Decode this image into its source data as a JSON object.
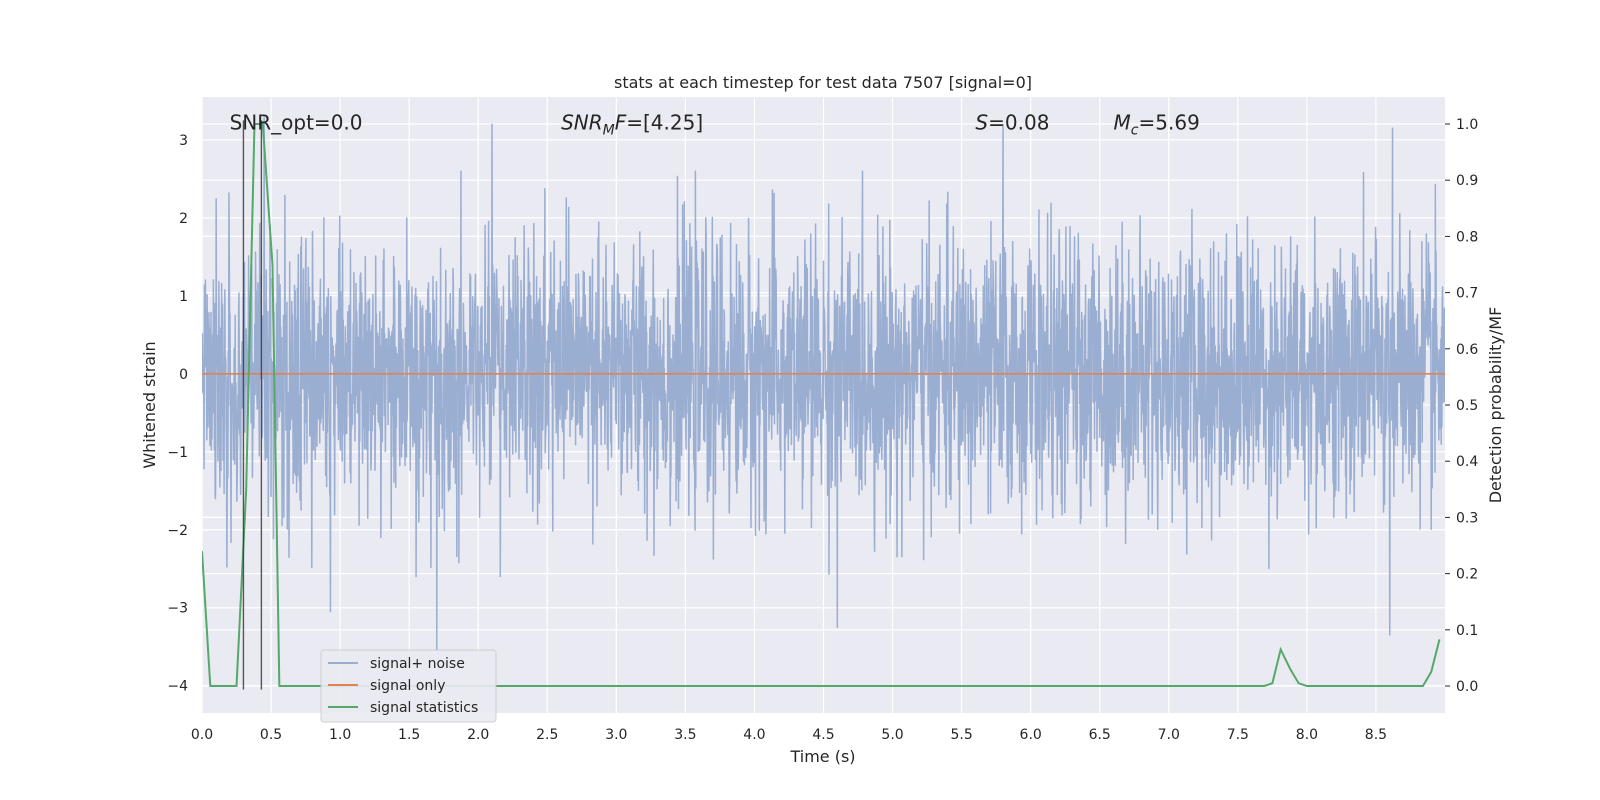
{
  "chart_data": {
    "type": "line",
    "title": "stats at each timestep for test data 7507 [signal=0]",
    "xlabel": "Time (s)",
    "ylabel": "Whitened strain",
    "y2label": "Detection probability/MF",
    "xlim": [
      0.0,
      9.0
    ],
    "ylim": [
      -4.35,
      3.55
    ],
    "y2lim": [
      -0.048,
      1.048
    ],
    "x_ticks": [
      0.0,
      0.5,
      1.0,
      1.5,
      2.0,
      2.5,
      3.0,
      3.5,
      4.0,
      4.5,
      5.0,
      5.5,
      6.0,
      6.5,
      7.0,
      7.5,
      8.0,
      8.5
    ],
    "x_tick_labels": [
      "0.0",
      "0.5",
      "1.0",
      "1.5",
      "2.0",
      "2.5",
      "3.0",
      "3.5",
      "4.0",
      "4.5",
      "5.0",
      "5.5",
      "6.0",
      "6.5",
      "7.0",
      "7.5",
      "8.0",
      "8.5"
    ],
    "y_ticks": [
      -4,
      -3,
      -2,
      -1,
      0,
      1,
      2,
      3
    ],
    "y_tick_labels": [
      "−4",
      "−3",
      "−2",
      "−1",
      "0",
      "1",
      "2",
      "3"
    ],
    "y2_ticks": [
      0.0,
      0.1,
      0.2,
      0.3,
      0.4,
      0.5,
      0.6,
      0.7,
      0.8,
      0.9,
      1.0
    ],
    "y2_tick_labels": [
      "0.0",
      "0.1",
      "0.2",
      "0.3",
      "0.4",
      "0.5",
      "0.6",
      "0.7",
      "0.8",
      "0.9",
      "1.0"
    ],
    "grid": true,
    "annotations": [
      {
        "text": "SNR_opt=0.0",
        "x": 0.2
      },
      {
        "text": "SNR_MF=[4.25]",
        "x": 2.6
      },
      {
        "text": "S=0.08",
        "x": 5.6
      },
      {
        "text": "M_c=5.69",
        "x": 6.6
      }
    ],
    "annotation_y": 3.22,
    "vlines": [
      0.3,
      0.43
    ],
    "vline_range": [
      -4.05,
      3.25
    ],
    "series": [
      {
        "name": "signal+ noise",
        "color": "#9aaed2",
        "kind": "noise",
        "std": 0.85,
        "duration": 9.0,
        "samples": 3600,
        "spikes": [
          {
            "x": 1.7,
            "y": -3.55
          },
          {
            "x": 2.1,
            "y": 3.2
          },
          {
            "x": 4.6,
            "y": -3.25
          },
          {
            "x": 8.6,
            "y": -3.35
          },
          {
            "x": 8.62,
            "y": 3.15
          },
          {
            "x": 5.8,
            "y": 3.2
          },
          {
            "x": 0.45,
            "y": 3.3
          },
          {
            "x": 0.93,
            "y": -3.05
          }
        ]
      },
      {
        "name": "signal only",
        "color": "#dd8452",
        "kind": "line",
        "x": [
          0.0,
          9.0
        ],
        "y": [
          0.0,
          0.0
        ]
      },
      {
        "name": "signal statistics",
        "color": "#55a868",
        "kind": "line",
        "axis": "right",
        "x": [
          0.0,
          0.06,
          0.12,
          0.25,
          0.32,
          0.38,
          0.44,
          0.51,
          0.56,
          0.62,
          1.0,
          2.0,
          3.0,
          4.0,
          5.0,
          6.0,
          7.0,
          7.6,
          7.69,
          7.75,
          7.81,
          7.88,
          7.94,
          8.0,
          8.1,
          8.5,
          8.84,
          8.9,
          8.96
        ],
        "y": [
          0.24,
          0.0,
          0.0,
          0.0,
          0.35,
          1.0,
          1.0,
          0.75,
          0.0,
          0.0,
          0.0,
          0.0,
          0.0,
          0.0,
          0.0,
          0.0,
          0.0,
          0.0,
          0.0,
          0.005,
          0.065,
          0.03,
          0.005,
          0.0,
          0.0,
          0.0,
          0.0,
          0.025,
          0.083
        ]
      }
    ],
    "legend": {
      "location": "lower-left",
      "entries": [
        "signal+ noise",
        "signal only",
        "signal statistics"
      ]
    }
  },
  "style": {
    "axes_bg": "#eaeaf2",
    "grid_color": "#ffffff",
    "text_color": "#262626",
    "vline_color": "#3a3a3a"
  }
}
